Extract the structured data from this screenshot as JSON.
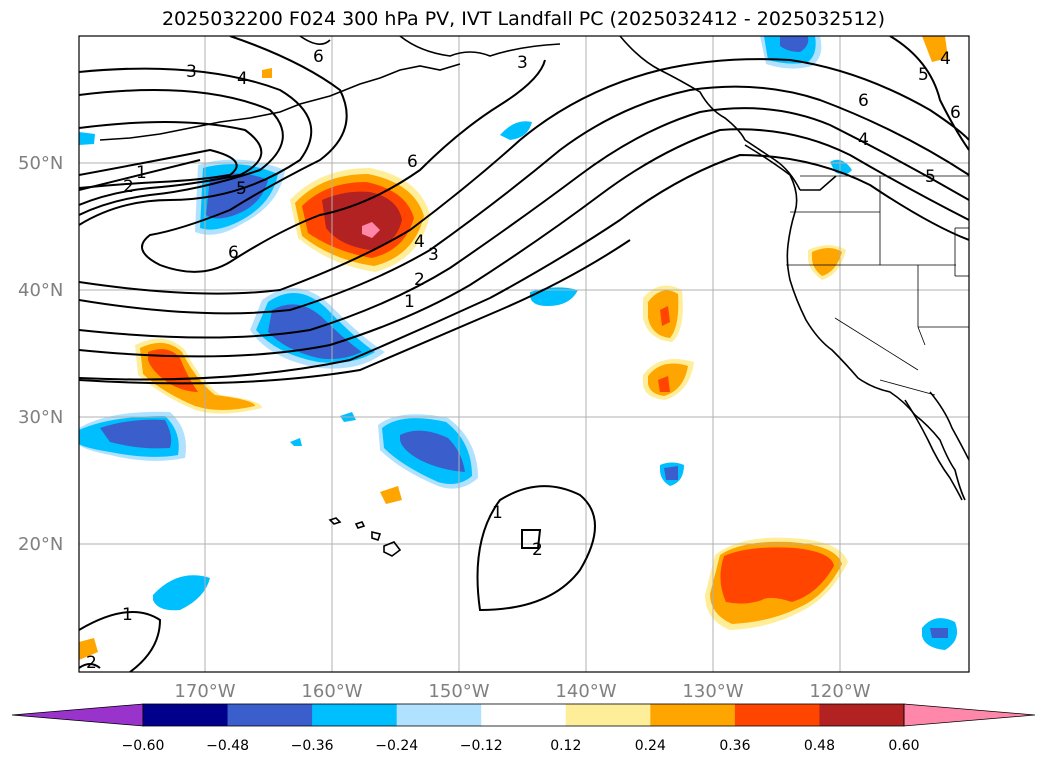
{
  "title": "2025032200 F024 300 hPa PV, IVT Landfall PC (2025032412 - 2025032512)",
  "lat_labels": [
    "50°N",
    "40°N",
    "30°N",
    "20°N"
  ],
  "lon_labels": [
    "170°W",
    "160°W",
    "150°W",
    "140°W",
    "130°W",
    "120°W"
  ],
  "colorbar": {
    "ticks": [
      "−0.60",
      "−0.48",
      "−0.36",
      "−0.24",
      "−0.12",
      "0.12",
      "0.24",
      "0.36",
      "0.48",
      "0.60"
    ],
    "colors": {
      "under": "#9933cc",
      "bins": [
        "#00008b",
        "#3a5fcd",
        "#00bfff",
        "#b0e2ff",
        "#ffffff",
        "#ffee99",
        "#ffa500",
        "#ff4500",
        "#b22222"
      ],
      "over": "#ff88aa"
    }
  },
  "pv_contour_labels": {
    "c3a": "3",
    "c4a": "4",
    "c6a": "6",
    "c3b": "3",
    "c6b": "6",
    "c4b": "4",
    "c5a": "5",
    "c6c": "6",
    "c5b": "5",
    "c4c": "4",
    "c1a": "1",
    "c2a": "2",
    "c5c": "5",
    "c6d": "6",
    "c6e": "6",
    "c4d": "4",
    "c3c": "3",
    "c2b": "2",
    "c1b": "1",
    "c1c": "1",
    "c2c": "2",
    "c1d": "1",
    "c2d": "2"
  },
  "colors": {
    "land_line": "#000000",
    "grid": "#b0b0b0",
    "tick_label": "#808080"
  }
}
